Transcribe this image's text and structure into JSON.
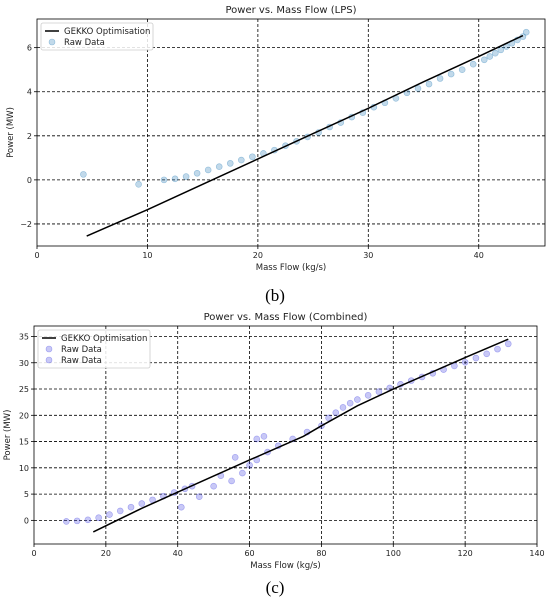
{
  "chart_data": [
    {
      "type": "scatter",
      "title": "Power vs. Mass Flow (LPS)",
      "xlabel": "Mass Flow (kg/s)",
      "ylabel": "Power (MW)",
      "xlim": [
        0,
        46
      ],
      "ylim": [
        -3,
        7.3
      ],
      "xticks": [
        0,
        10,
        20,
        30,
        40
      ],
      "yticks": [
        -2,
        0,
        2,
        4,
        6
      ],
      "grid": true,
      "legend_position": "top-left",
      "panel_label": "(b)",
      "series": [
        {
          "name": "GEKKO Optimisation",
          "kind": "line",
          "color": "#000000",
          "x": [
            4.5,
            10,
            15,
            20,
            25,
            30,
            35,
            40,
            44
          ],
          "y": [
            -2.55,
            -1.35,
            -0.2,
            0.95,
            2.1,
            3.25,
            4.45,
            5.6,
            6.55
          ]
        },
        {
          "name": "Raw Data",
          "kind": "scatter",
          "color": "#1f77b4",
          "x": [
            4.2,
            9.2,
            11.5,
            12.5,
            13.5,
            14.5,
            15.5,
            16.5,
            17.5,
            18.5,
            19.5,
            20.5,
            21.5,
            22.5,
            23.5,
            24.5,
            25.5,
            26.5,
            27.5,
            28.5,
            29.5,
            30.5,
            31.5,
            32.5,
            33.5,
            34.5,
            35.5,
            36.5,
            37.5,
            38.5,
            39.5,
            40.5,
            41.0,
            41.5,
            42.0,
            42.5,
            43.0,
            43.5,
            44.0,
            44.3
          ],
          "y": [
            0.25,
            -0.2,
            0.0,
            0.05,
            0.15,
            0.3,
            0.45,
            0.6,
            0.75,
            0.9,
            1.05,
            1.2,
            1.35,
            1.55,
            1.75,
            1.95,
            2.15,
            2.4,
            2.6,
            2.85,
            3.05,
            3.3,
            3.5,
            3.7,
            3.95,
            4.15,
            4.35,
            4.6,
            4.8,
            5.0,
            5.25,
            5.45,
            5.6,
            5.75,
            5.9,
            6.05,
            6.2,
            6.35,
            6.5,
            6.7
          ]
        }
      ]
    },
    {
      "type": "scatter",
      "title": "Power vs. Mass Flow (Combined)",
      "xlabel": "Mass Flow (kg/s)",
      "ylabel": "Power (MW)",
      "xlim": [
        0,
        140
      ],
      "ylim": [
        -4.5,
        37
      ],
      "xticks": [
        0,
        20,
        40,
        60,
        80,
        100,
        120,
        140
      ],
      "yticks": [
        0,
        5,
        10,
        15,
        20,
        25,
        30,
        35
      ],
      "grid": true,
      "legend_position": "top-left",
      "panel_label": "(c)",
      "series": [
        {
          "name": "GEKKO Optimisation",
          "kind": "line",
          "color": "#000000",
          "x": [
            16.5,
            30,
            45,
            60,
            75,
            80,
            90,
            100,
            110,
            120,
            132
          ],
          "y": [
            -2.2,
            2.3,
            6.9,
            11.5,
            16.0,
            18.0,
            21.8,
            25.0,
            28.0,
            31.0,
            34.5
          ]
        },
        {
          "name": "Raw Data",
          "kind": "scatter",
          "color": "#3a3ae0",
          "x": [
            9,
            12,
            15,
            18,
            21,
            24,
            27,
            30,
            33,
            36,
            39,
            42,
            44,
            46,
            50,
            55,
            58,
            60,
            62,
            65,
            68,
            72,
            76,
            80
          ],
          "y": [
            -0.2,
            -0.1,
            0.1,
            0.5,
            1.1,
            1.8,
            2.5,
            3.2,
            3.9,
            4.6,
            5.3,
            6.0,
            6.5,
            4.5,
            6.5,
            7.5,
            9.0,
            10.5,
            11.5,
            13.0,
            14.2,
            15.5,
            16.8,
            18.0
          ]
        },
        {
          "name": "Raw Data",
          "kind": "scatter",
          "color": "#3a3ae0",
          "x": [
            82,
            84,
            86,
            88,
            90,
            93,
            96,
            99,
            102,
            105,
            108,
            111,
            114,
            117,
            120,
            123,
            126,
            129,
            132,
            41,
            62,
            64,
            52,
            56
          ],
          "y": [
            19.5,
            20.5,
            21.5,
            22.3,
            23.0,
            23.8,
            24.5,
            25.2,
            25.9,
            26.6,
            27.3,
            28.0,
            28.7,
            29.4,
            30.1,
            30.9,
            31.7,
            32.6,
            33.6,
            2.5,
            15.5,
            16.0,
            8.5,
            12.0
          ]
        }
      ]
    }
  ]
}
